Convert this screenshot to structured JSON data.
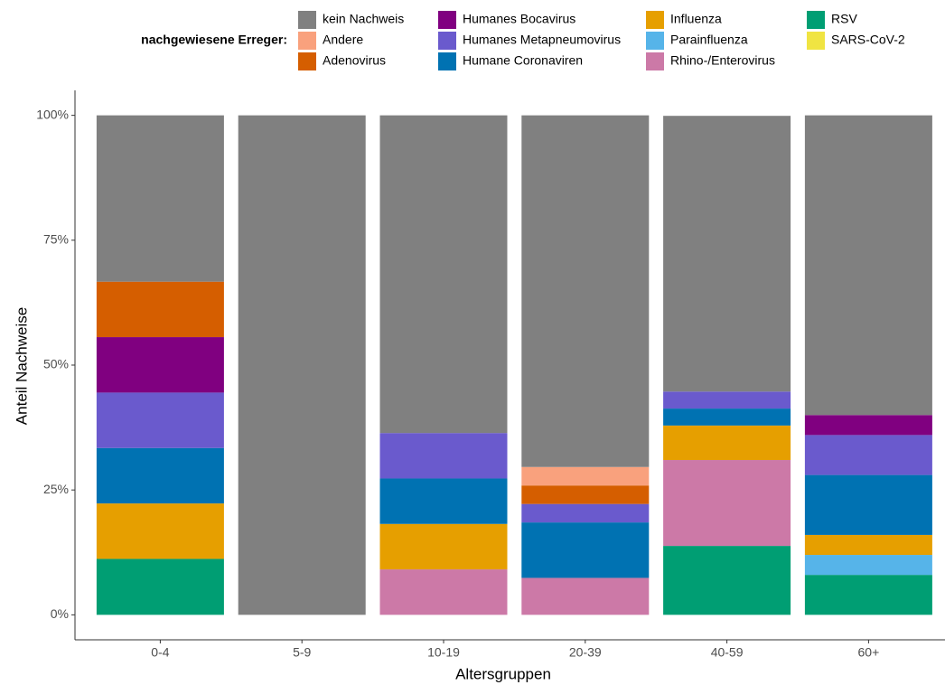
{
  "chart_data": {
    "type": "stacked_bar",
    "x_label": "Altersgruppen",
    "y_label": "Anteil Nachweise",
    "legend_title": "nachgewiesene Erreger:",
    "legend_position": "top",
    "categories": [
      "0-4",
      "5-9",
      "10-19",
      "20-39",
      "40-59",
      "60+"
    ],
    "ylim": [
      -5,
      105
    ],
    "yticks": [
      {
        "value": 0,
        "label": "0%"
      },
      {
        "value": 25,
        "label": "25%"
      },
      {
        "value": 50,
        "label": "50%"
      },
      {
        "value": 75,
        "label": "75%"
      },
      {
        "value": 100,
        "label": "100%"
      }
    ],
    "series": [
      {
        "name": "kein Nachweis",
        "color": "#808080",
        "values": [
          33.3,
          100,
          63.6,
          70.4,
          55.2,
          60
        ]
      },
      {
        "name": "Andere",
        "color": "#f9a17d",
        "values": [
          0,
          0,
          0,
          3.7,
          0,
          0
        ]
      },
      {
        "name": "Adenovirus",
        "color": "#d55e00",
        "values": [
          11.1,
          0,
          0,
          3.7,
          0,
          0
        ]
      },
      {
        "name": "Humanes Bocavirus",
        "color": "#800080",
        "values": [
          11.1,
          0,
          0,
          0,
          0,
          4
        ]
      },
      {
        "name": "Humanes Metapneumovirus",
        "color": "#6a5acd",
        "values": [
          11.1,
          0,
          9.1,
          3.7,
          3.4,
          8
        ]
      },
      {
        "name": "Humane Coronaviren",
        "color": "#0072b2",
        "values": [
          11.1,
          0,
          9.1,
          11.1,
          3.4,
          12
        ]
      },
      {
        "name": "Influenza",
        "color": "#e69f00",
        "values": [
          11.1,
          0,
          9.1,
          0,
          6.9,
          4
        ]
      },
      {
        "name": "Parainfluenza",
        "color": "#56b4e9",
        "values": [
          0,
          0,
          0,
          0,
          0,
          4
        ]
      },
      {
        "name": "Rhino-/Enterovirus",
        "color": "#cc79a7",
        "values": [
          0,
          0,
          9.1,
          7.4,
          17.2,
          0
        ]
      },
      {
        "name": "RSV",
        "color": "#009e73",
        "values": [
          11.2,
          0,
          0,
          0,
          13.8,
          8
        ]
      },
      {
        "name": "SARS-CoV-2",
        "color": "#f0e442",
        "values": [
          0,
          0,
          0,
          0,
          0,
          0
        ]
      }
    ]
  }
}
